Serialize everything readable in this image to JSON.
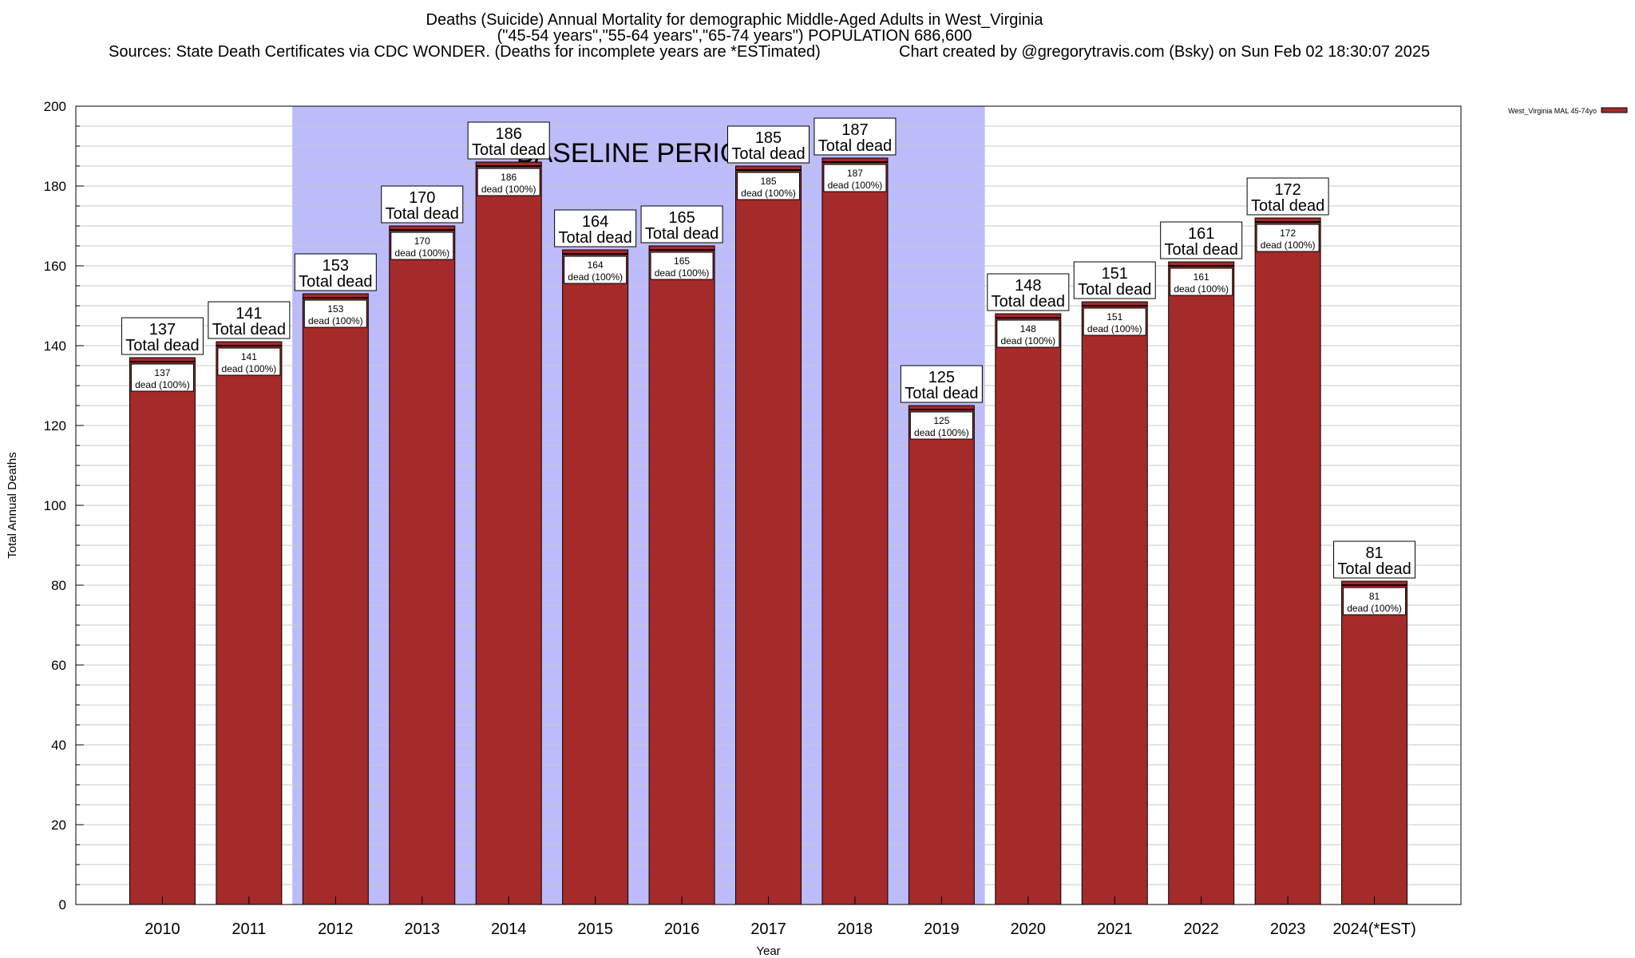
{
  "title_lines": [
    "Deaths (Suicide) Annual Mortality for demographic Middle-Aged Adults in West_Virginia",
    "(\"45-54 years\",\"55-64 years\",\"65-74 years\") POPULATION 686,600"
  ],
  "sources_text": "Sources: State Death Certificates via CDC WONDER. (Deaths for incomplete years are *ESTimated)",
  "credit_text": "Chart created by @gregorytravis.com (Bsky) on Sun Feb 02 18:30:07 2025",
  "colors": {
    "bar": "#a52a2a",
    "baseline": "#bcbcfb",
    "grid": "#c8c8c8"
  },
  "chart_data": {
    "type": "bar",
    "categories": [
      "2010",
      "2011",
      "2012",
      "2013",
      "2014",
      "2015",
      "2016",
      "2017",
      "2018",
      "2019",
      "2020",
      "2021",
      "2022",
      "2023",
      "2024(*EST)"
    ],
    "series": [
      {
        "name": "West_Virginia MAL 45-74yo",
        "values": [
          137,
          141,
          153,
          170,
          186,
          164,
          165,
          185,
          187,
          125,
          148,
          151,
          161,
          172,
          81
        ]
      }
    ],
    "total_label": "Total dead",
    "inner_label_suffix": "dead (100%)",
    "xlabel": "Year",
    "ylabel": "Total Annual Deaths",
    "ylim": [
      0,
      200
    ],
    "yticks": [
      0,
      20,
      40,
      60,
      80,
      100,
      120,
      140,
      160,
      180,
      200
    ],
    "baseline_period": {
      "label": "BASELINE PERIOD",
      "from": "2012",
      "to": "2019"
    },
    "grid": true,
    "legend_position": "top-right"
  }
}
